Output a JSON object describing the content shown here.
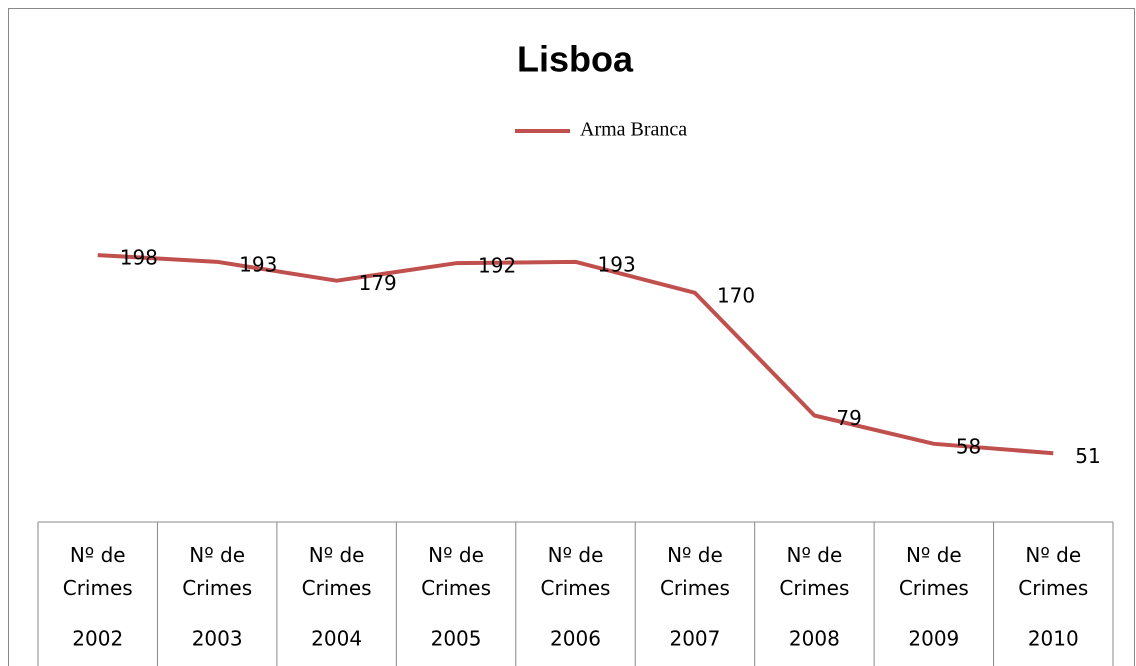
{
  "chart_data": {
    "type": "line",
    "title": "Lisboa",
    "categories": [
      "2002",
      "2003",
      "2004",
      "2005",
      "2006",
      "2007",
      "2008",
      "2009",
      "2010"
    ],
    "category_labels": [
      "Nº de Crimes",
      "Nº de Crimes",
      "Nº de Crimes",
      "Nº de Crimes",
      "Nº de Crimes",
      "Nº de Crimes",
      "Nº de Crimes",
      "Nº de Crimes",
      "Nº de Crimes"
    ],
    "series": [
      {
        "name": "Arma Branca",
        "color": "#c0504d",
        "values": [
          198,
          193,
          179,
          192,
          193,
          170,
          79,
          58,
          51
        ]
      }
    ],
    "ylim": [
      0,
      250
    ],
    "legend": "top"
  }
}
